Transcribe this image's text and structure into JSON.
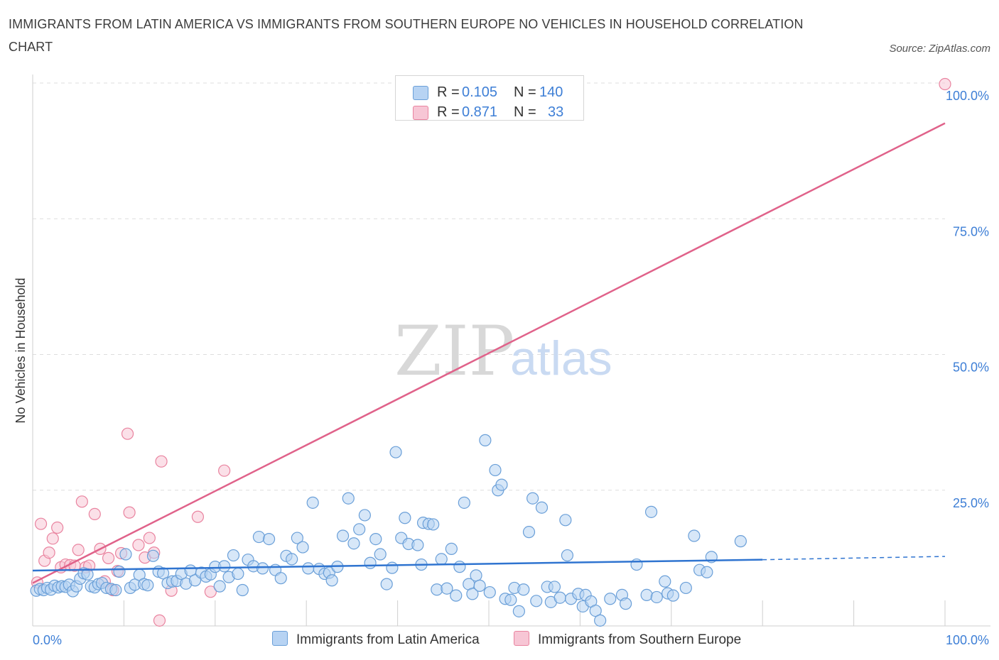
{
  "title": "IMMIGRANTS FROM LATIN AMERICA VS IMMIGRANTS FROM SOUTHERN EUROPE NO VEHICLES IN HOUSEHOLD CORRELATION CHART",
  "source": "Source: ZipAtlas.com",
  "watermark": {
    "zip": "ZIP",
    "atlas": "atlas"
  },
  "legend_top": [
    {
      "r_label": "R =",
      "r_value": "0.105",
      "n_label": "N =",
      "n_value": "140"
    },
    {
      "r_label": "R =",
      "r_value": "0.871",
      "n_label": "N =",
      "n_value": "33"
    }
  ],
  "legend_bottom": [
    {
      "label": "Immigrants from Latin America"
    },
    {
      "label": "Immigrants from Southern Europe"
    }
  ],
  "colors": {
    "blue_fill": "#b7d3f3",
    "blue_stroke": "#6a9fd8",
    "blue_line": "#2f74d0",
    "pink_fill": "#f7c6d5",
    "pink_stroke": "#e9839f",
    "pink_line": "#e0628a",
    "tick_text": "#3e7fd6",
    "grid": "#dddddd"
  },
  "chart_data": {
    "type": "scatter",
    "title": "IMMIGRANTS FROM LATIN AMERICA VS IMMIGRANTS FROM SOUTHERN EUROPE NO VEHICLES IN HOUSEHOLD CORRELATION CHART",
    "xlabel": "",
    "ylabel": "No Vehicles in Household",
    "xlim": [
      0,
      100
    ],
    "ylim": [
      0,
      100
    ],
    "x_tick_labels": [
      "0.0%",
      "100.0%"
    ],
    "y_tick_labels": [
      "100.0%",
      "75.0%",
      "50.0%",
      "25.0%"
    ],
    "y_ticks": [
      100,
      75,
      50,
      25
    ],
    "grid": true,
    "legend_position": "top-center",
    "series": [
      {
        "name": "Immigrants from Latin America",
        "r": 0.105,
        "n": 140,
        "trend": {
          "x": [
            0,
            80
          ],
          "y": [
            10.2,
            12.2
          ],
          "dashed_extension": {
            "x": [
              80,
              100
            ],
            "y": [
              12.2,
              12.8
            ]
          }
        },
        "points": [
          [
            0.4,
            6.5
          ],
          [
            0.8,
            6.8
          ],
          [
            1.2,
            6.6
          ],
          [
            1.6,
            7.0
          ],
          [
            2.0,
            6.7
          ],
          [
            2.4,
            7.4
          ],
          [
            2.8,
            7.1
          ],
          [
            3.2,
            7.3
          ],
          [
            3.6,
            7.2
          ],
          [
            4.0,
            7.6
          ],
          [
            4.4,
            6.4
          ],
          [
            4.8,
            7.3
          ],
          [
            5.2,
            8.7
          ],
          [
            5.6,
            9.7
          ],
          [
            6.0,
            9.5
          ],
          [
            6.4,
            7.3
          ],
          [
            6.8,
            7.1
          ],
          [
            7.2,
            7.7
          ],
          [
            7.6,
            7.9
          ],
          [
            8.1,
            7.0
          ],
          [
            8.6,
            6.8
          ],
          [
            9.1,
            6.6
          ],
          [
            9.5,
            10.0
          ],
          [
            10.2,
            13.2
          ],
          [
            10.7,
            7.0
          ],
          [
            11.2,
            7.6
          ],
          [
            11.7,
            9.4
          ],
          [
            12.2,
            7.7
          ],
          [
            12.6,
            7.5
          ],
          [
            13.2,
            12.9
          ],
          [
            13.8,
            10.0
          ],
          [
            14.3,
            9.7
          ],
          [
            14.8,
            7.9
          ],
          [
            15.3,
            8.2
          ],
          [
            15.8,
            8.3
          ],
          [
            16.3,
            9.6
          ],
          [
            16.8,
            7.8
          ],
          [
            17.3,
            10.2
          ],
          [
            17.8,
            8.4
          ],
          [
            18.5,
            9.8
          ],
          [
            19.0,
            9.1
          ],
          [
            19.5,
            9.5
          ],
          [
            20.0,
            10.9
          ],
          [
            20.5,
            7.3
          ],
          [
            21.0,
            11.0
          ],
          [
            21.5,
            9.0
          ],
          [
            22.0,
            13.0
          ],
          [
            22.5,
            9.6
          ],
          [
            23.0,
            6.6
          ],
          [
            23.6,
            12.2
          ],
          [
            24.2,
            11.0
          ],
          [
            24.8,
            16.4
          ],
          [
            25.2,
            10.6
          ],
          [
            25.9,
            16.0
          ],
          [
            26.6,
            10.3
          ],
          [
            27.2,
            8.8
          ],
          [
            27.8,
            12.9
          ],
          [
            28.4,
            12.3
          ],
          [
            29.0,
            16.2
          ],
          [
            29.6,
            14.5
          ],
          [
            30.2,
            10.6
          ],
          [
            30.7,
            22.7
          ],
          [
            31.4,
            10.5
          ],
          [
            32.0,
            9.6
          ],
          [
            32.5,
            9.8
          ],
          [
            32.8,
            8.4
          ],
          [
            33.4,
            10.9
          ],
          [
            34.0,
            16.6
          ],
          [
            34.6,
            23.5
          ],
          [
            35.2,
            15.2
          ],
          [
            35.8,
            17.8
          ],
          [
            36.4,
            20.4
          ],
          [
            37.0,
            11.6
          ],
          [
            37.6,
            16.0
          ],
          [
            38.1,
            13.2
          ],
          [
            38.8,
            7.7
          ],
          [
            39.4,
            10.7
          ],
          [
            39.8,
            32.0
          ],
          [
            40.4,
            16.2
          ],
          [
            40.8,
            19.9
          ],
          [
            41.2,
            15.1
          ],
          [
            42.2,
            14.9
          ],
          [
            42.6,
            11.3
          ],
          [
            42.8,
            19.0
          ],
          [
            43.4,
            18.8
          ],
          [
            43.9,
            18.7
          ],
          [
            44.3,
            6.7
          ],
          [
            44.8,
            12.3
          ],
          [
            45.4,
            6.9
          ],
          [
            45.9,
            14.2
          ],
          [
            46.4,
            5.6
          ],
          [
            46.8,
            10.9
          ],
          [
            47.3,
            22.7
          ],
          [
            47.8,
            7.7
          ],
          [
            48.2,
            5.9
          ],
          [
            48.6,
            9.3
          ],
          [
            49.0,
            7.4
          ],
          [
            49.6,
            34.2
          ],
          [
            50.1,
            6.2
          ],
          [
            50.7,
            28.7
          ],
          [
            51.0,
            25.0
          ],
          [
            51.4,
            26.0
          ],
          [
            51.8,
            5.0
          ],
          [
            52.4,
            4.8
          ],
          [
            52.8,
            7.0
          ],
          [
            53.3,
            2.7
          ],
          [
            53.8,
            6.7
          ],
          [
            54.4,
            17.3
          ],
          [
            54.8,
            23.5
          ],
          [
            55.2,
            4.6
          ],
          [
            55.8,
            21.8
          ],
          [
            56.4,
            7.2
          ],
          [
            56.8,
            4.4
          ],
          [
            57.2,
            7.2
          ],
          [
            57.8,
            5.2
          ],
          [
            58.4,
            19.5
          ],
          [
            58.6,
            13.0
          ],
          [
            59.0,
            5.0
          ],
          [
            59.8,
            5.9
          ],
          [
            60.3,
            3.6
          ],
          [
            60.6,
            5.7
          ],
          [
            61.2,
            4.5
          ],
          [
            61.7,
            2.8
          ],
          [
            62.2,
            1.0
          ],
          [
            63.3,
            5.0
          ],
          [
            64.6,
            5.7
          ],
          [
            65.0,
            4.1
          ],
          [
            66.2,
            11.3
          ],
          [
            67.3,
            5.7
          ],
          [
            67.8,
            21.0
          ],
          [
            68.4,
            5.3
          ],
          [
            69.3,
            8.2
          ],
          [
            69.6,
            6.0
          ],
          [
            70.2,
            5.6
          ],
          [
            71.6,
            7.0
          ],
          [
            72.5,
            16.6
          ],
          [
            73.1,
            10.3
          ],
          [
            73.9,
            9.9
          ],
          [
            74.4,
            12.7
          ],
          [
            77.6,
            15.6
          ]
        ]
      },
      {
        "name": "Immigrants from Southern Europe",
        "r": 0.871,
        "n": 33,
        "trend": {
          "x": [
            0,
            100
          ],
          "y": [
            7.9,
            92.6
          ]
        },
        "points": [
          [
            0.5,
            8.0
          ],
          [
            0.9,
            18.8
          ],
          [
            1.3,
            12.0
          ],
          [
            1.8,
            13.5
          ],
          [
            2.2,
            16.1
          ],
          [
            2.7,
            18.1
          ],
          [
            3.1,
            10.8
          ],
          [
            3.6,
            11.3
          ],
          [
            4.1,
            11.2
          ],
          [
            4.6,
            11.1
          ],
          [
            5.0,
            14.0
          ],
          [
            5.4,
            22.9
          ],
          [
            5.8,
            10.8
          ],
          [
            6.2,
            11.1
          ],
          [
            6.8,
            20.6
          ],
          [
            7.4,
            14.2
          ],
          [
            7.9,
            8.2
          ],
          [
            8.3,
            12.5
          ],
          [
            8.8,
            6.6
          ],
          [
            9.3,
            10.1
          ],
          [
            9.7,
            13.4
          ],
          [
            10.4,
            35.4
          ],
          [
            10.6,
            20.9
          ],
          [
            11.6,
            14.9
          ],
          [
            12.3,
            12.6
          ],
          [
            12.8,
            16.2
          ],
          [
            13.3,
            13.5
          ],
          [
            13.9,
            1.0
          ],
          [
            14.1,
            30.3
          ],
          [
            15.2,
            6.5
          ],
          [
            18.1,
            20.1
          ],
          [
            19.5,
            6.3
          ],
          [
            21.0,
            28.6
          ]
        ],
        "extra_points": [
          [
            100,
            99.8
          ]
        ]
      }
    ]
  }
}
